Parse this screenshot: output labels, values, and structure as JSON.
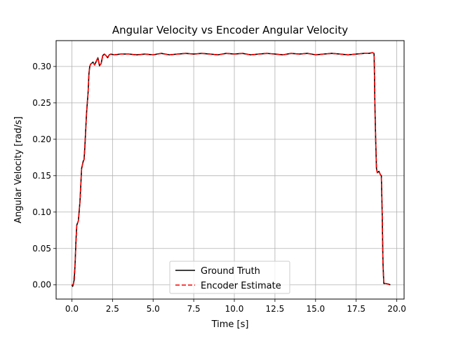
{
  "chart_data": {
    "type": "line",
    "title": "Angular Velocity vs Encoder Angular Velocity",
    "xlabel": "Time [s]",
    "ylabel": "Angular Velocity [rad/s]",
    "xlim": [
      -0.97,
      20.45
    ],
    "ylim": [
      -0.0195,
      0.3355
    ],
    "xticks": [
      0.0,
      2.5,
      5.0,
      7.5,
      10.0,
      12.5,
      15.0,
      17.5,
      20.0
    ],
    "xtick_labels": [
      "0.0",
      "2.5",
      "5.0",
      "7.5",
      "10.0",
      "12.5",
      "15.0",
      "17.5",
      "20.0"
    ],
    "yticks": [
      0.0,
      0.05,
      0.1,
      0.15,
      0.2,
      0.25,
      0.3
    ],
    "ytick_labels": [
      "0.00",
      "0.05",
      "0.10",
      "0.15",
      "0.20",
      "0.25",
      "0.30"
    ],
    "grid": true,
    "legend_position": "bottom-center",
    "series": [
      {
        "name": "Ground Truth",
        "color": "#000000",
        "style": "solid",
        "x": [
          0.0,
          0.05,
          0.1,
          0.15,
          0.2,
          0.25,
          0.3,
          0.35,
          0.4,
          0.5,
          0.6,
          0.7,
          0.75,
          0.8,
          0.9,
          1.0,
          1.05,
          1.1,
          1.15,
          1.2,
          1.25,
          1.3,
          1.4,
          1.5,
          1.6,
          1.7,
          1.8,
          1.9,
          2.0,
          2.1,
          2.2,
          2.3,
          2.4,
          2.6,
          3.0,
          3.5,
          4.0,
          4.5,
          5.0,
          5.5,
          6.0,
          6.5,
          7.0,
          7.5,
          8.0,
          8.5,
          9.0,
          9.5,
          10.0,
          10.5,
          11.0,
          11.5,
          12.0,
          12.5,
          13.0,
          13.5,
          14.0,
          14.5,
          15.0,
          15.5,
          16.0,
          16.5,
          17.0,
          17.5,
          18.0,
          18.3,
          18.5,
          18.6,
          18.62,
          18.65,
          18.7,
          18.75,
          18.8,
          18.9,
          19.0,
          19.05,
          19.1,
          19.15,
          19.2,
          19.3,
          19.5,
          19.6
        ],
        "y": [
          0.0,
          -0.002,
          0.002,
          0.008,
          0.03,
          0.06,
          0.082,
          0.085,
          0.088,
          0.115,
          0.16,
          0.17,
          0.172,
          0.19,
          0.235,
          0.265,
          0.29,
          0.3,
          0.303,
          0.304,
          0.305,
          0.306,
          0.302,
          0.307,
          0.312,
          0.301,
          0.304,
          0.315,
          0.317,
          0.315,
          0.312,
          0.316,
          0.317,
          0.316,
          0.317,
          0.317,
          0.316,
          0.317,
          0.316,
          0.318,
          0.316,
          0.317,
          0.318,
          0.317,
          0.318,
          0.317,
          0.316,
          0.318,
          0.317,
          0.318,
          0.316,
          0.317,
          0.318,
          0.317,
          0.316,
          0.318,
          0.317,
          0.318,
          0.316,
          0.317,
          0.318,
          0.317,
          0.316,
          0.317,
          0.318,
          0.318,
          0.319,
          0.318,
          0.3,
          0.25,
          0.2,
          0.16,
          0.154,
          0.156,
          0.151,
          0.15,
          0.1,
          0.03,
          0.002,
          0.002,
          0.001,
          0.0
        ]
      },
      {
        "name": "Encoder Estimate",
        "color": "#ff0000",
        "style": "dashed",
        "x": [
          0.0,
          0.1,
          0.2,
          0.3,
          0.35,
          0.4,
          0.5,
          0.6,
          0.7,
          0.75,
          0.8,
          0.9,
          1.0,
          1.05,
          1.1,
          1.15,
          1.2,
          1.25,
          1.3,
          1.4,
          1.5,
          1.6,
          1.7,
          1.8,
          1.9,
          2.0,
          2.1,
          2.2,
          2.3,
          2.4,
          2.6,
          3.0,
          3.5,
          4.0,
          4.5,
          5.0,
          5.5,
          6.0,
          6.5,
          7.0,
          7.5,
          8.0,
          8.5,
          9.0,
          9.5,
          10.0,
          10.5,
          11.0,
          11.5,
          12.0,
          12.5,
          13.0,
          13.5,
          14.0,
          14.5,
          15.0,
          15.5,
          16.0,
          16.5,
          17.0,
          17.5,
          18.0,
          18.3,
          18.5,
          18.6,
          18.62,
          18.65,
          18.7,
          18.75,
          18.8,
          18.9,
          19.0,
          19.05,
          19.1,
          19.15,
          19.2,
          19.3,
          19.5,
          19.6
        ],
        "y": [
          0.0,
          0.001,
          0.03,
          0.082,
          0.085,
          0.088,
          0.115,
          0.16,
          0.17,
          0.172,
          0.19,
          0.235,
          0.265,
          0.29,
          0.3,
          0.303,
          0.304,
          0.305,
          0.306,
          0.302,
          0.307,
          0.312,
          0.301,
          0.304,
          0.315,
          0.317,
          0.315,
          0.312,
          0.316,
          0.317,
          0.316,
          0.317,
          0.317,
          0.316,
          0.317,
          0.316,
          0.318,
          0.316,
          0.317,
          0.318,
          0.317,
          0.318,
          0.317,
          0.316,
          0.318,
          0.317,
          0.318,
          0.316,
          0.317,
          0.318,
          0.317,
          0.316,
          0.318,
          0.317,
          0.318,
          0.316,
          0.317,
          0.318,
          0.317,
          0.316,
          0.317,
          0.318,
          0.318,
          0.319,
          0.318,
          0.3,
          0.25,
          0.2,
          0.16,
          0.154,
          0.156,
          0.151,
          0.15,
          0.1,
          0.03,
          0.002,
          0.002,
          0.001,
          0.0
        ]
      }
    ]
  }
}
